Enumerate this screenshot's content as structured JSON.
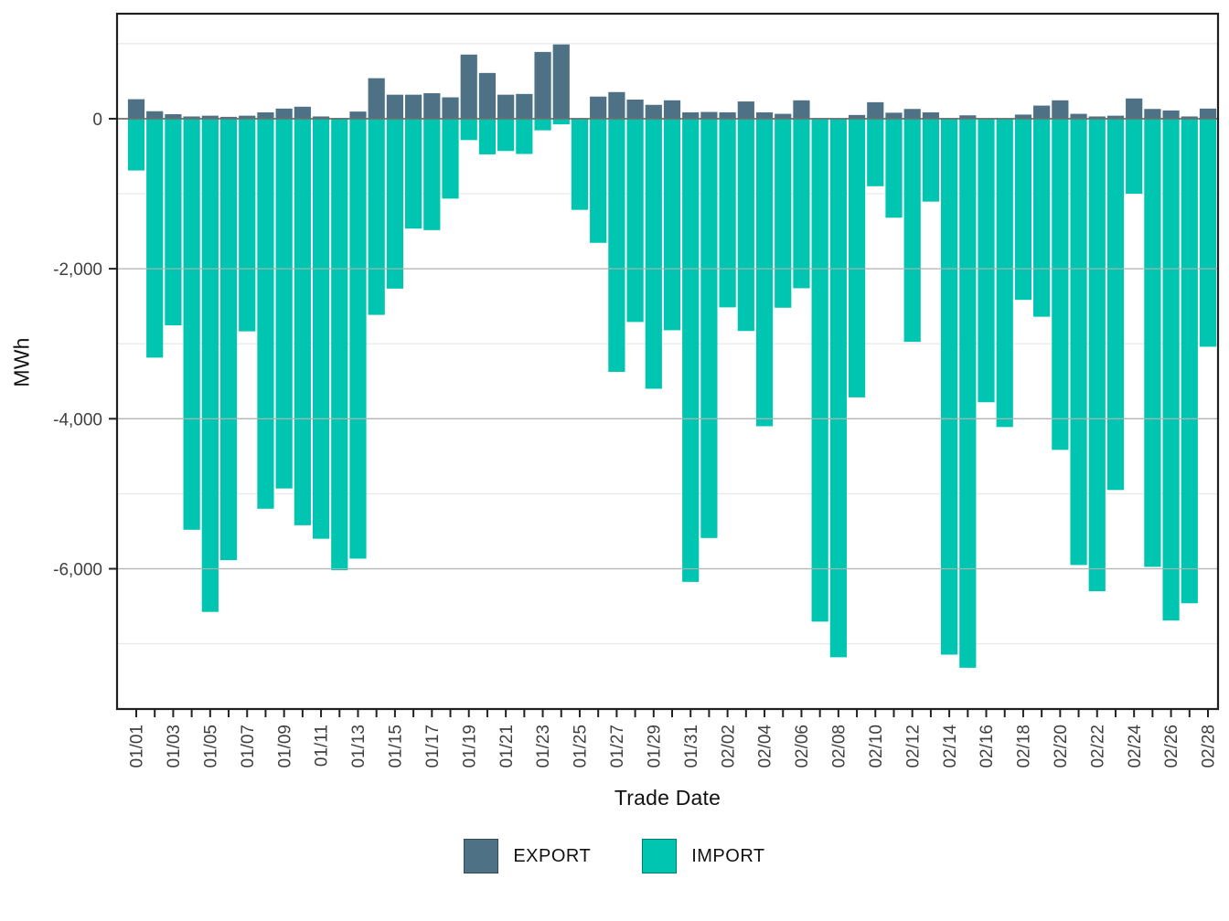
{
  "axes": {
    "x_label": "Trade Date",
    "y_label": "MWh"
  },
  "legend": {
    "items": [
      {
        "label": "EXPORT",
        "color": "#4E7185"
      },
      {
        "label": "IMPORT",
        "color": "#00C5B1"
      }
    ]
  },
  "chart_data": {
    "type": "bar",
    "title": "",
    "xlabel": "Trade Date",
    "ylabel": "MWh",
    "legend_position": "bottom",
    "grid": true,
    "ylim": [
      -7870,
      1400
    ],
    "x_tick_label_every": 2,
    "y_ticks": [
      {
        "value": 0,
        "label": "0"
      },
      {
        "value": -2000,
        "label": "-2,000"
      },
      {
        "value": -4000,
        "label": "-4,000"
      },
      {
        "value": -6000,
        "label": "-6,000"
      }
    ],
    "y_minor_ticks": [
      1000,
      -1000,
      -3000,
      -5000,
      -7000
    ],
    "x": [
      "01/01",
      "01/02",
      "01/03",
      "01/04",
      "01/05",
      "01/06",
      "01/07",
      "01/08",
      "01/09",
      "01/10",
      "01/11",
      "01/12",
      "01/13",
      "01/14",
      "01/15",
      "01/16",
      "01/17",
      "01/18",
      "01/19",
      "01/20",
      "01/21",
      "01/22",
      "01/23",
      "01/24",
      "01/25",
      "01/26",
      "01/27",
      "01/28",
      "01/29",
      "01/30",
      "01/31",
      "02/01",
      "02/02",
      "02/03",
      "02/04",
      "02/05",
      "02/06",
      "02/07",
      "02/08",
      "02/09",
      "02/10",
      "02/11",
      "02/12",
      "02/13",
      "02/14",
      "02/15",
      "02/16",
      "02/17",
      "02/18",
      "02/19",
      "02/20",
      "02/21",
      "02/22",
      "02/23",
      "02/24",
      "02/25",
      "02/26",
      "02/27",
      "02/28"
    ],
    "series": [
      {
        "name": "EXPORT",
        "color": "#4E7185",
        "values": [
          260,
          100,
          60,
          30,
          40,
          25,
          40,
          85,
          135,
          160,
          30,
          10,
          95,
          540,
          320,
          320,
          340,
          285,
          855,
          610,
          320,
          330,
          890,
          990,
          0,
          295,
          355,
          255,
          185,
          245,
          85,
          90,
          85,
          230,
          85,
          65,
          245,
          0,
          0,
          50,
          220,
          80,
          130,
          85,
          5,
          45,
          0,
          0,
          55,
          175,
          245,
          65,
          30,
          40,
          270,
          130,
          110,
          30,
          135
        ]
      },
      {
        "name": "IMPORT",
        "color": "#00C5B1",
        "values": [
          -690,
          -3185,
          -2755,
          -5480,
          -6575,
          -5885,
          -2835,
          -5200,
          -4930,
          -5420,
          -5600,
          -6020,
          -5865,
          -2615,
          -2265,
          -1465,
          -1485,
          -1065,
          -285,
          -475,
          -430,
          -470,
          -155,
          -75,
          -1215,
          -1655,
          -3375,
          -2710,
          -3600,
          -2820,
          -6175,
          -5590,
          -2515,
          -2830,
          -4100,
          -2520,
          -2260,
          -6705,
          -7180,
          -3715,
          -900,
          -1320,
          -2975,
          -1105,
          -7145,
          -7320,
          -3780,
          -4110,
          -2415,
          -2640,
          -4415,
          -5950,
          -6300,
          -4950,
          -1000,
          -5975,
          -6690,
          -6460,
          -3040
        ]
      }
    ]
  }
}
